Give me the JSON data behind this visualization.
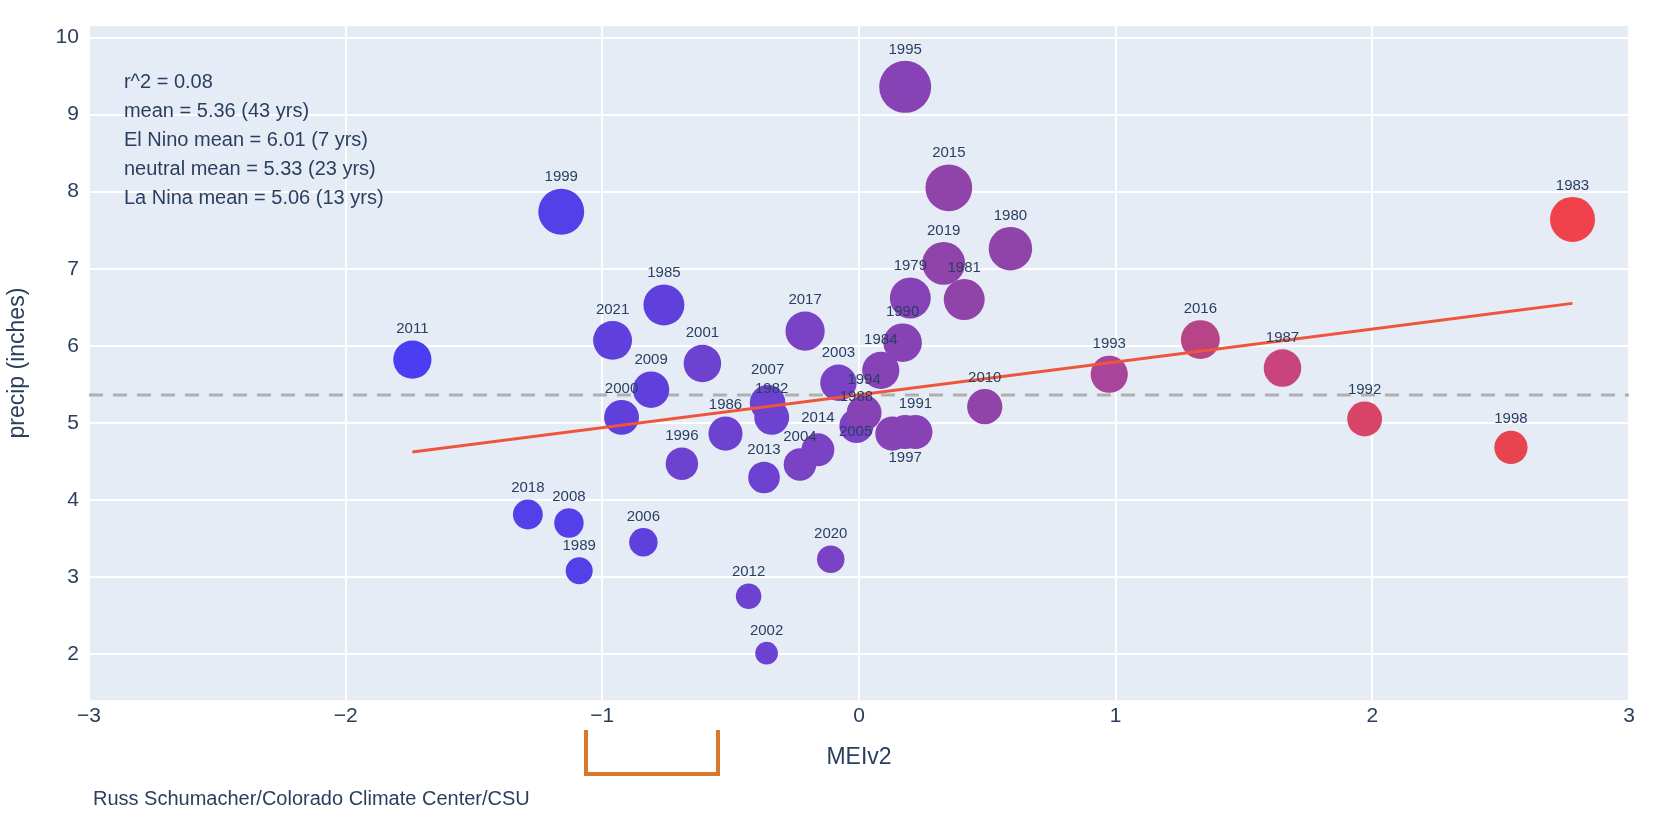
{
  "chart_data": {
    "type": "bubble",
    "xlabel": "MEIv2",
    "ylabel": "precip (inches)",
    "xlim": [
      -3,
      3
    ],
    "ylim": [
      1.4,
      10.15
    ],
    "xticks": [
      {
        "value": -3,
        "label": "−3"
      },
      {
        "value": -2,
        "label": "−2"
      },
      {
        "value": -1,
        "label": "−1"
      },
      0,
      1,
      2,
      3
    ],
    "yticks": [
      2,
      3,
      4,
      5,
      6,
      7,
      8,
      9,
      10
    ],
    "grid": true,
    "legend": false,
    "series": [
      {
        "x": [
          0.2,
          0.59,
          0.41,
          -0.34,
          2.78,
          0.085,
          -0.76,
          -0.52,
          1.65,
          -0.01,
          -1.09,
          0.17,
          0.22,
          1.97,
          0.975,
          0.02,
          0.18,
          -0.69,
          0.18,
          2.54,
          -1.16,
          -0.925,
          -0.61,
          -0.36,
          -0.08,
          -0.23,
          0.13,
          -0.84,
          -0.356,
          -1.13,
          -0.81,
          0.49,
          -1.74,
          -0.43,
          -0.37,
          -0.16,
          0.35,
          1.33,
          -0.21,
          -1.29,
          0.33,
          -0.11,
          -0.96
        ],
        "values": [
          6.62,
          7.26,
          6.6,
          5.07,
          7.64,
          5.68,
          6.53,
          4.86,
          5.71,
          4.96,
          3.08,
          6.04,
          4.88,
          5.05,
          5.63,
          5.13,
          9.36,
          4.47,
          4.88,
          4.68,
          7.74,
          5.07,
          5.77,
          2.01,
          5.52,
          4.46,
          4.86,
          3.45,
          5.26,
          3.7,
          5.43,
          5.21,
          5.82,
          2.75,
          4.29,
          4.65,
          8.05,
          6.08,
          6.19,
          3.81,
          7.07,
          3.23,
          6.07
        ],
        "sizes": [
          0.62,
          0.7,
          0.62,
          0.45,
          0.75,
          0.51,
          0.62,
          0.43,
          0.52,
          0.43,
          0.27,
          0.55,
          0.43,
          0.45,
          0.51,
          0.45,
          1,
          0.39,
          0.43,
          0.41,
          0.78,
          0.45,
          0.52,
          0.19,
          0.49,
          0.39,
          0.43,
          0.3,
          0.47,
          0.32,
          0.49,
          0.46,
          0.54,
          0.24,
          0.37,
          0.4,
          0.81,
          0.56,
          0.57,
          0.33,
          0.68,
          0.28,
          0.56
        ],
        "colors": [
          "#8742b6",
          "#9043a8",
          "#9043a8",
          "#6e42d0",
          "#f0424a",
          "#8742b6",
          "#6040dc",
          "#6e42d0",
          "#c8447a",
          "#7a42c4",
          "#553fe8",
          "#8742b6",
          "#8742b6",
          "#d84468",
          "#a8449a",
          "#8742b6",
          "#8742b6",
          "#6e42d0",
          "#8742b6",
          "#e84450",
          "#553fe8",
          "#6040dc",
          "#6e42d0",
          "#6e42d0",
          "#7a42c4",
          "#7a42c4",
          "#8742b6",
          "#6040dc",
          "#6e42d0",
          "#553fe8",
          "#6040dc",
          "#9043a8",
          "#4b3ef2",
          "#6e42d0",
          "#6e42d0",
          "#7a42c4",
          "#9043a8",
          "#b84488",
          "#7a42c4",
          "#553fe8",
          "#9043a8",
          "#7a42c4",
          "#6040dc"
        ]
      },
      {
        "type": "line",
        "color": "#ef553b",
        "x": [
          -1.74,
          2.78
        ],
        "values": [
          4.62,
          6.55
        ]
      }
    ],
    "ref_lines": [
      {
        "axis": "y",
        "value": 5.36,
        "label": null,
        "color": "#b0b0b0",
        "line_style": "dashed"
      }
    ],
    "annotations": [
      {
        "text": "1979",
        "x": 0.2,
        "y": 6.62
      },
      {
        "text": "1980",
        "x": 0.59,
        "y": 7.26
      },
      {
        "text": "1981",
        "x": 0.41,
        "y": 6.6
      },
      {
        "text": "1982",
        "x": -0.34,
        "y": 5.07
      },
      {
        "text": "1983",
        "x": 2.78,
        "y": 7.64
      },
      {
        "text": "1984",
        "x": 0.085,
        "y": 5.68
      },
      {
        "text": "1985",
        "x": -0.76,
        "y": 6.53
      },
      {
        "text": "1986",
        "x": -0.52,
        "y": 4.86
      },
      {
        "text": "1987",
        "x": 1.65,
        "y": 5.71
      },
      {
        "text": "1988",
        "x": -0.01,
        "y": 4.96
      },
      {
        "text": "1989",
        "x": -1.09,
        "y": 3.08
      },
      {
        "text": "1990",
        "x": 0.17,
        "y": 6.04
      },
      {
        "text": "1991",
        "x": 0.22,
        "y": 4.88
      },
      {
        "text": "1992",
        "x": 1.97,
        "y": 5.05
      },
      {
        "text": "1993",
        "x": 0.975,
        "y": 5.63
      },
      {
        "text": "1994",
        "x": 0.02,
        "y": 5.13
      },
      {
        "text": "1995",
        "x": 0.18,
        "y": 9.36
      },
      {
        "text": "1996",
        "x": -0.69,
        "y": 4.47
      },
      {
        "text": "1997",
        "x": 0.18,
        "y": 4.88
      },
      {
        "text": "1998",
        "x": 2.54,
        "y": 4.68
      },
      {
        "text": "1999",
        "x": -1.16,
        "y": 7.74
      },
      {
        "text": "2000",
        "x": -0.925,
        "y": 5.07
      },
      {
        "text": "2001",
        "x": -0.61,
        "y": 5.77
      },
      {
        "text": "2002",
        "x": -0.36,
        "y": 2.01
      },
      {
        "text": "2003",
        "x": -0.08,
        "y": 5.52
      },
      {
        "text": "2004",
        "x": -0.23,
        "y": 4.46
      },
      {
        "text": "2005",
        "x": 0.13,
        "y": 4.86
      },
      {
        "text": "2006",
        "x": -0.84,
        "y": 3.45
      },
      {
        "text": "2007",
        "x": -0.356,
        "y": 5.26
      },
      {
        "text": "2008",
        "x": -1.13,
        "y": 3.7
      },
      {
        "text": "2009",
        "x": -0.81,
        "y": 5.43
      },
      {
        "text": "2010",
        "x": 0.49,
        "y": 5.21
      },
      {
        "text": "2011",
        "x": -1.74,
        "y": 5.82
      },
      {
        "text": "2012",
        "x": -0.43,
        "y": 2.75
      },
      {
        "text": "2013",
        "x": -0.37,
        "y": 4.29
      },
      {
        "text": "2014",
        "x": -0.16,
        "y": 4.65
      },
      {
        "text": "2015",
        "x": 0.35,
        "y": 8.05
      },
      {
        "text": "2016",
        "x": 1.33,
        "y": 6.08
      },
      {
        "text": "2017",
        "x": -0.21,
        "y": 6.19
      },
      {
        "text": "2018",
        "x": -1.29,
        "y": 3.81
      },
      {
        "text": "2019",
        "x": 0.33,
        "y": 7.07
      },
      {
        "text": "2020",
        "x": -0.11,
        "y": 3.23
      },
      {
        "text": "2021",
        "x": -0.96,
        "y": 6.07
      },
      "r^2 = 0.08",
      "mean = 5.36 (43 yrs)",
      "El Nino mean = 6.01 (7 yrs)",
      "neutral mean = 5.33 (23 yrs)",
      "La Nina mean = 5.06 (13 yrs)",
      "Russ Schumacher/Colorado Climate Center/CSU"
    ]
  }
}
